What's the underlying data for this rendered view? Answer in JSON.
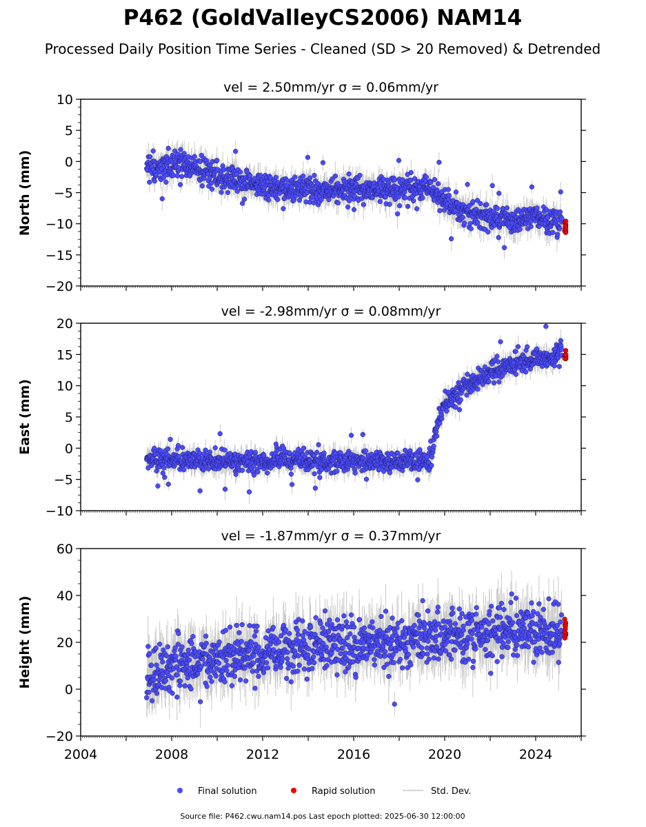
{
  "figure": {
    "title": "P462 (GoldValleyCS2006) NAM14",
    "subtitle": "Processed Daily Position Time Series - Cleaned (SD > 20 Removed) & Detrended",
    "footer": "Source file: P462.cwu.nam14.pos  Last epoch plotted: 2025-06-30 12:00:00",
    "colors": {
      "final": "#4b4bff",
      "rapid": "#ee0000",
      "stddev": "#c8c8c8",
      "edge": "#1a1a55"
    }
  },
  "legend": {
    "final": "Final solution",
    "rapid": "Rapid solution",
    "stddev": "Std. Dev."
  },
  "chart_data": [
    {
      "type": "scatter",
      "title": "vel = 2.50mm/yr   σ = 0.06mm/yr",
      "ylabel": "North (mm)",
      "xlim": [
        2004,
        2026
      ],
      "ylim": [
        -20,
        10
      ],
      "yticks": [
        -20,
        -15,
        -10,
        -5,
        0,
        5,
        10
      ],
      "xticks": [
        2004,
        2008,
        2012,
        2016,
        2020,
        2024
      ],
      "grid": false,
      "series": [
        {
          "name": "Final solution",
          "x": [
            2006.9,
            2007.5,
            2008.0,
            2009.0,
            2010.0,
            2011.0,
            2012.0,
            2013.0,
            2014.0,
            2015.0,
            2016.0,
            2017.0,
            2018.0,
            2019.0,
            2019.3,
            2020.0,
            2021.0,
            2022.0,
            2023.0,
            2024.0,
            2025.0
          ],
          "y": [
            -1.0,
            -1.0,
            -0.5,
            -0.8,
            -2.0,
            -3.0,
            -3.8,
            -4.3,
            -4.5,
            -4.7,
            -4.5,
            -4.5,
            -4.5,
            -4.2,
            -3.8,
            -6.5,
            -8.0,
            -9.0,
            -9.2,
            -9.3,
            -9.6
          ]
        },
        {
          "name": "Rapid solution",
          "x": [
            2025.3
          ],
          "y": [
            -10.5
          ]
        }
      ]
    },
    {
      "type": "scatter",
      "title": "vel = -2.98mm/yr   σ = 0.08mm/yr",
      "ylabel": "East (mm)",
      "xlim": [
        2004,
        2026
      ],
      "ylim": [
        -10,
        20
      ],
      "yticks": [
        -10,
        -5,
        0,
        5,
        10,
        15,
        20
      ],
      "xticks": [
        2004,
        2008,
        2012,
        2016,
        2020,
        2024
      ],
      "grid": false,
      "series": [
        {
          "name": "Final solution",
          "x": [
            2006.9,
            2008.0,
            2009.0,
            2010.0,
            2011.0,
            2012.0,
            2013.0,
            2014.0,
            2015.0,
            2016.0,
            2017.0,
            2018.0,
            2019.0,
            2019.4,
            2019.7,
            2020.0,
            2020.5,
            2021.0,
            2022.0,
            2023.0,
            2024.0,
            2025.0
          ],
          "y": [
            -1.8,
            -1.8,
            -2.0,
            -2.0,
            -2.2,
            -2.0,
            -2.0,
            -2.0,
            -2.2,
            -2.0,
            -2.0,
            -2.2,
            -2.2,
            -2.0,
            4.5,
            7.0,
            8.5,
            10.0,
            12.0,
            13.3,
            14.3,
            14.8
          ]
        },
        {
          "name": "Rapid solution",
          "x": [
            2025.3
          ],
          "y": [
            15.2
          ]
        }
      ]
    },
    {
      "type": "scatter",
      "title": "vel = -1.87mm/yr   σ = 0.37mm/yr",
      "ylabel": "Height (mm)",
      "xlim": [
        2004,
        2026
      ],
      "ylim": [
        -20,
        60
      ],
      "yticks": [
        -20,
        0,
        20,
        40,
        60
      ],
      "xticks": [
        2004,
        2008,
        2012,
        2016,
        2020,
        2024
      ],
      "grid": false,
      "series": [
        {
          "name": "Final solution",
          "x": [
            2006.9,
            2007.3,
            2008.0,
            2009.0,
            2010.0,
            2011.0,
            2012.0,
            2013.0,
            2014.0,
            2015.0,
            2016.0,
            2017.0,
            2018.0,
            2019.0,
            2020.0,
            2021.0,
            2022.0,
            2023.0,
            2024.0,
            2025.0
          ],
          "y": [
            4,
            6,
            9,
            11,
            12,
            13,
            15,
            17,
            18,
            19,
            19,
            20,
            20,
            21,
            22,
            23,
            25,
            25,
            25,
            24
          ]
        },
        {
          "name": "Rapid solution",
          "x": [
            2025.3
          ],
          "y": [
            24
          ]
        }
      ]
    }
  ]
}
